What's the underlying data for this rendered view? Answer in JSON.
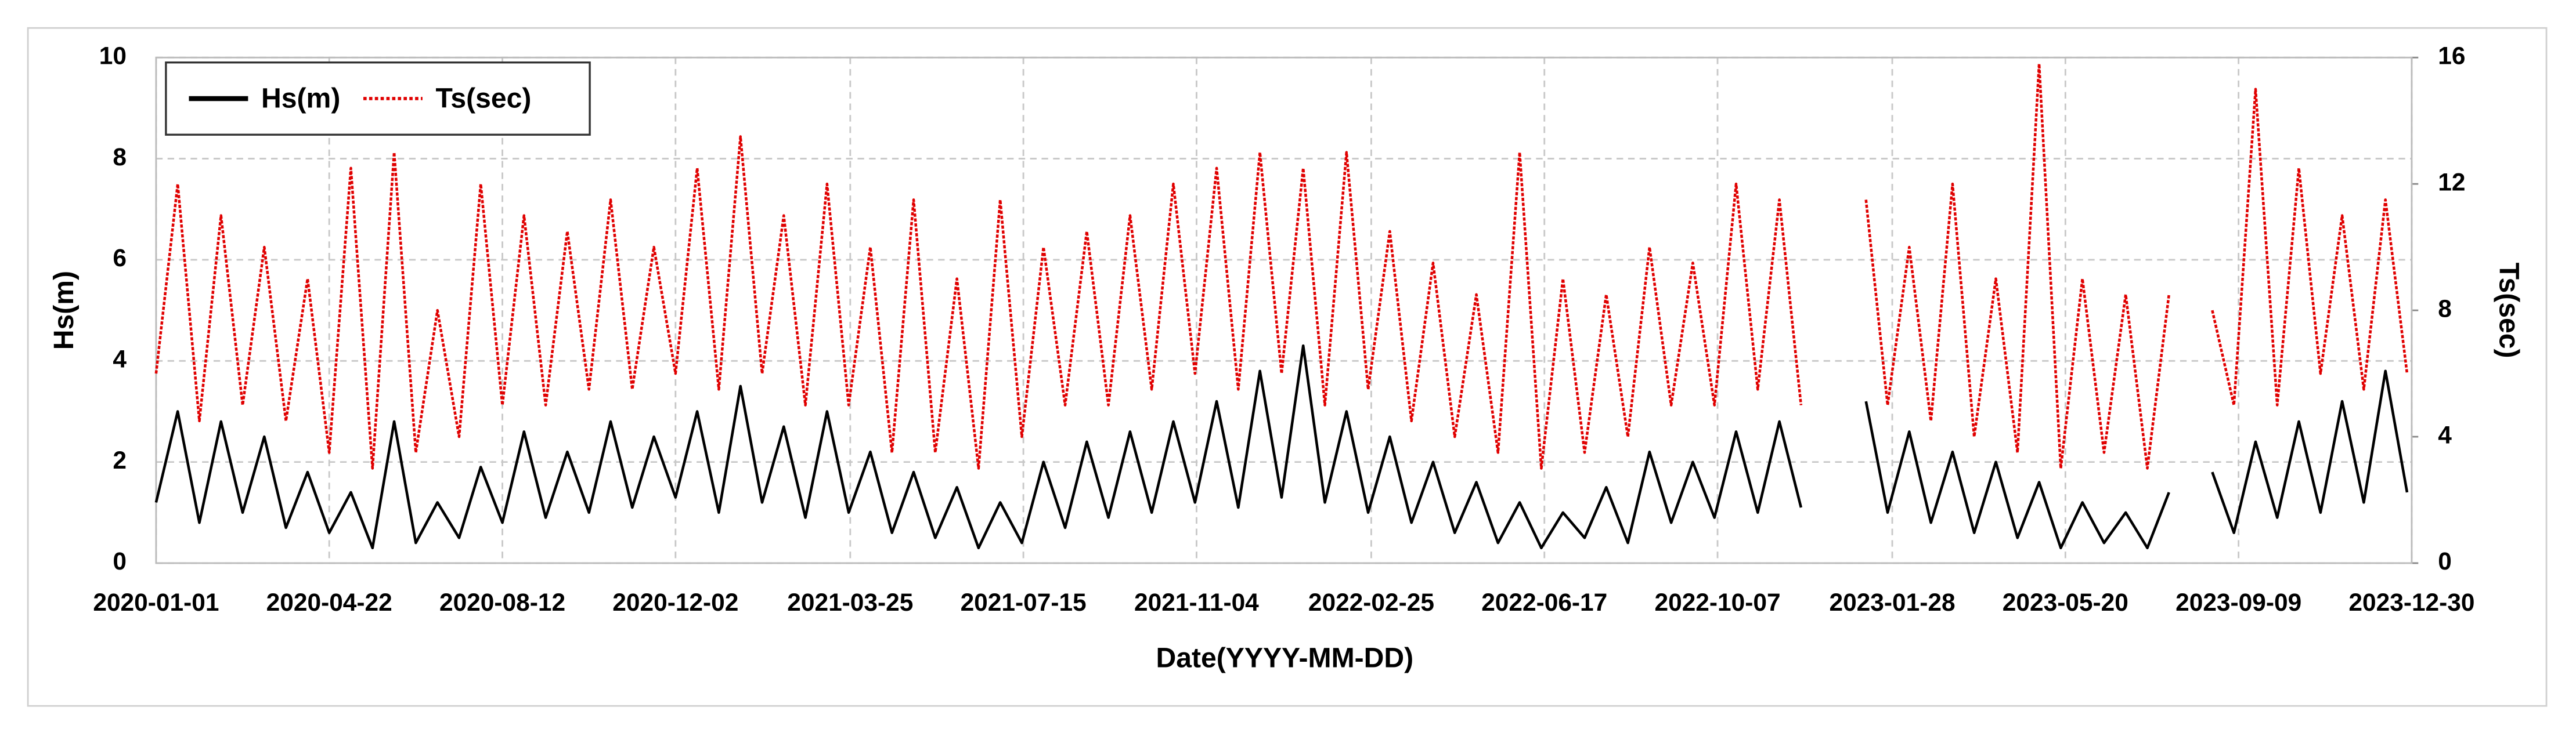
{
  "chart_data": {
    "type": "line",
    "xlabel": "Date(YYYY-MM-DD)",
    "ylabel": "Hs(m)",
    "y2label": "Ts(sec)",
    "xlim": [
      "2020-01-01",
      "2023-12-30"
    ],
    "xticks": [
      "2020-01-01",
      "2020-04-22",
      "2020-08-12",
      "2020-12-02",
      "2021-03-25",
      "2021-07-15",
      "2021-11-04",
      "2022-02-25",
      "2022-06-17",
      "2022-10-07",
      "2023-01-28",
      "2023-05-20",
      "2023-09-09",
      "2023-12-30"
    ],
    "ylim": [
      0,
      10
    ],
    "yticks": [
      0,
      2,
      4,
      6,
      8,
      10
    ],
    "y2lim": [
      0,
      16
    ],
    "y2ticks": [
      0,
      4,
      8,
      12,
      16
    ],
    "grid": true,
    "legend": "upper left",
    "x": [
      "2020-01-01",
      "2020-01-15",
      "2020-01-29",
      "2020-02-12",
      "2020-02-26",
      "2020-03-11",
      "2020-03-25",
      "2020-04-08",
      "2020-04-22",
      "2020-05-06",
      "2020-05-20",
      "2020-06-03",
      "2020-06-17",
      "2020-07-01",
      "2020-07-15",
      "2020-07-29",
      "2020-08-12",
      "2020-08-26",
      "2020-09-09",
      "2020-09-23",
      "2020-10-07",
      "2020-10-21",
      "2020-11-04",
      "2020-11-18",
      "2020-12-02",
      "2020-12-16",
      "2020-12-30",
      "2021-01-13",
      "2021-01-27",
      "2021-02-10",
      "2021-02-24",
      "2021-03-10",
      "2021-03-24",
      "2021-04-07",
      "2021-04-21",
      "2021-05-05",
      "2021-05-19",
      "2021-06-02",
      "2021-06-16",
      "2021-06-30",
      "2021-07-14",
      "2021-07-28",
      "2021-08-11",
      "2021-08-25",
      "2021-09-08",
      "2021-09-22",
      "2021-10-06",
      "2021-10-20",
      "2021-11-03",
      "2021-11-17",
      "2021-12-01",
      "2021-12-15",
      "2021-12-29",
      "2022-01-12",
      "2022-01-26",
      "2022-02-09",
      "2022-02-23",
      "2022-03-09",
      "2022-03-23",
      "2022-04-06",
      "2022-04-20",
      "2022-05-04",
      "2022-05-18",
      "2022-06-01",
      "2022-06-15",
      "2022-06-29",
      "2022-07-13",
      "2022-07-27",
      "2022-08-10",
      "2022-08-24",
      "2022-09-07",
      "2022-09-21",
      "2022-10-05",
      "2022-10-19",
      "2022-11-02",
      "2022-11-16",
      "2022-11-30",
      "2022-12-14",
      "2022-12-28",
      "2023-01-11",
      "2023-01-25",
      "2023-02-08",
      "2023-02-22",
      "2023-03-08",
      "2023-03-22",
      "2023-04-05",
      "2023-04-19",
      "2023-05-03",
      "2023-05-17",
      "2023-05-31",
      "2023-06-14",
      "2023-06-28",
      "2023-07-12",
      "2023-07-26",
      "2023-08-09",
      "2023-08-23",
      "2023-09-06",
      "2023-09-20",
      "2023-10-04",
      "2023-10-18",
      "2023-11-01",
      "2023-11-15",
      "2023-11-29",
      "2023-12-13",
      "2023-12-27"
    ],
    "series": [
      {
        "name": "Hs(m)",
        "color": "#000000",
        "style": "solid",
        "axis": "y",
        "values": [
          1.2,
          3.0,
          0.8,
          2.8,
          1.0,
          2.5,
          0.7,
          1.8,
          0.6,
          1.4,
          0.3,
          2.8,
          0.4,
          1.2,
          0.5,
          1.9,
          0.8,
          2.6,
          0.9,
          2.2,
          1.0,
          2.8,
          1.1,
          2.5,
          1.3,
          3.0,
          1.0,
          3.5,
          1.2,
          2.7,
          0.9,
          3.0,
          1.0,
          2.2,
          0.6,
          1.8,
          0.5,
          1.5,
          0.3,
          1.2,
          0.4,
          2.0,
          0.7,
          2.4,
          0.9,
          2.6,
          1.0,
          2.8,
          1.2,
          3.2,
          1.1,
          3.8,
          1.3,
          4.3,
          1.2,
          3.0,
          1.0,
          2.5,
          0.8,
          2.0,
          0.6,
          1.6,
          0.4,
          1.2,
          0.3,
          1.0,
          0.5,
          1.5,
          0.4,
          2.2,
          0.8,
          2.0,
          0.9,
          2.6,
          1.0,
          2.8,
          1.1,
          null,
          null,
          3.2,
          1.0,
          2.6,
          0.8,
          2.2,
          0.6,
          2.0,
          0.5,
          1.6,
          0.3,
          1.2,
          0.4,
          1.0,
          0.3,
          1.4,
          null,
          1.8,
          0.6,
          2.4,
          0.9,
          2.8,
          1.0,
          3.2,
          1.2,
          3.8,
          1.4
        ]
      },
      {
        "name": "Ts(sec)",
        "color": "#e00000",
        "style": "dotted",
        "axis": "y2",
        "values": [
          6.0,
          12.0,
          4.5,
          11.0,
          5.0,
          10.0,
          4.5,
          9.0,
          3.5,
          12.5,
          3.0,
          13.0,
          3.5,
          8.0,
          4.0,
          12.0,
          5.0,
          11.0,
          5.0,
          10.5,
          5.5,
          11.5,
          5.5,
          10.0,
          6.0,
          12.5,
          5.5,
          13.5,
          6.0,
          11.0,
          5.0,
          12.0,
          5.0,
          10.0,
          3.5,
          11.5,
          3.5,
          9.0,
          3.0,
          11.5,
          4.0,
          10.0,
          5.0,
          10.5,
          5.0,
          11.0,
          5.5,
          12.0,
          6.0,
          12.5,
          5.5,
          13.0,
          6.0,
          12.5,
          5.0,
          13.0,
          5.5,
          10.5,
          4.5,
          9.5,
          4.0,
          8.5,
          3.5,
          13.0,
          3.0,
          9.0,
          3.5,
          8.5,
          4.0,
          10.0,
          5.0,
          9.5,
          5.0,
          12.0,
          5.5,
          11.5,
          5.0,
          null,
          null,
          11.5,
          5.0,
          10.0,
          4.5,
          12.0,
          4.0,
          9.0,
          3.5,
          15.8,
          3.0,
          9.0,
          3.5,
          8.5,
          3.0,
          8.5,
          null,
          8.0,
          5.0,
          15.0,
          5.0,
          12.5,
          6.0,
          11.0,
          5.5,
          11.5,
          6.0
        ]
      }
    ]
  }
}
